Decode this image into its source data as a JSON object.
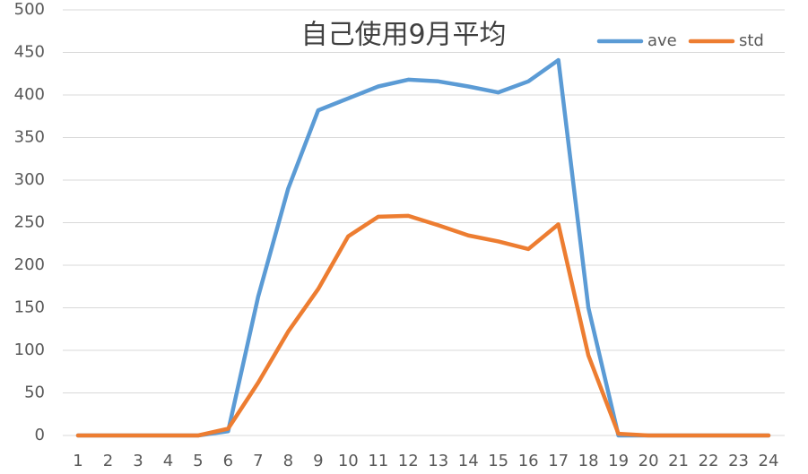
{
  "chart_data": {
    "type": "line",
    "title": "自己使用9月平均",
    "categories": [
      "1",
      "2",
      "3",
      "4",
      "5",
      "6",
      "7",
      "8",
      "9",
      "10",
      "11",
      "12",
      "13",
      "14",
      "15",
      "16",
      "17",
      "18",
      "19",
      "20",
      "21",
      "22",
      "23",
      "24"
    ],
    "series": [
      {
        "name": "ave",
        "color": "#5b9bd5",
        "values": [
          0,
          0,
          0,
          0,
          0,
          5,
          163,
          290,
          382,
          396,
          410,
          418,
          416,
          410,
          403,
          416,
          441,
          150,
          0,
          0,
          0,
          0,
          0,
          0
        ]
      },
      {
        "name": "std",
        "color": "#ed7d31",
        "values": [
          0,
          0,
          0,
          0,
          0,
          8,
          62,
          122,
          172,
          234,
          257,
          258,
          247,
          235,
          228,
          219,
          248,
          94,
          2,
          0,
          0,
          0,
          0,
          0
        ]
      }
    ],
    "ylim": [
      0,
      500
    ],
    "yticks": [
      0,
      50,
      100,
      150,
      200,
      250,
      300,
      350,
      400,
      450,
      500
    ],
    "grid": true,
    "legend": "top-right"
  }
}
